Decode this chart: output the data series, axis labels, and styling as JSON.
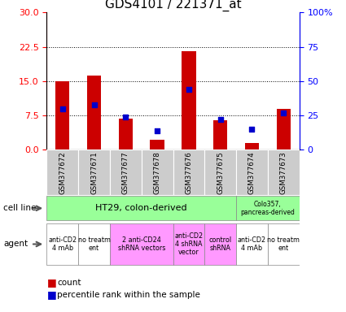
{
  "title": "GDS4101 / 221371_at",
  "samples": [
    "GSM377672",
    "GSM377671",
    "GSM377677",
    "GSM377678",
    "GSM377676",
    "GSM377675",
    "GSM377674",
    "GSM377673"
  ],
  "counts": [
    15.0,
    16.2,
    6.8,
    2.2,
    21.5,
    6.5,
    1.5,
    9.0
  ],
  "percentile_ranks": [
    30.0,
    33.0,
    24.0,
    14.0,
    44.0,
    22.0,
    15.0,
    27.0
  ],
  "ylim_left": [
    0,
    30
  ],
  "ylim_right": [
    0,
    100
  ],
  "yticks_left": [
    0,
    7.5,
    15,
    22.5,
    30
  ],
  "yticks_right": [
    0,
    25,
    50,
    75,
    100
  ],
  "count_color": "#cc0000",
  "percentile_color": "#0000cc",
  "title_fontsize": 11,
  "tick_fontsize": 8,
  "label_fontsize": 8,
  "sample_box_color": "#cccccc",
  "cell_line_color": "#99ff99",
  "agent_pink_color": "#ff99ff",
  "agent_white_color": "#ffffff",
  "agent_spans": [
    {
      "text": "anti-CD2\n4 mAb",
      "start": 0,
      "end": 1,
      "color": "#ffffff"
    },
    {
      "text": "no treatm\nent",
      "start": 1,
      "end": 2,
      "color": "#ffffff"
    },
    {
      "text": "2 anti-CD24\nshRNA vectors",
      "start": 2,
      "end": 4,
      "color": "#ff99ff"
    },
    {
      "text": "anti-CD2\n4 shRNA\nvector",
      "start": 4,
      "end": 5,
      "color": "#ff99ff"
    },
    {
      "text": "control\nshRNA",
      "start": 5,
      "end": 6,
      "color": "#ff99ff"
    },
    {
      "text": "anti-CD2\n4 mAb",
      "start": 6,
      "end": 7,
      "color": "#ffffff"
    },
    {
      "text": "no treatm\nent",
      "start": 7,
      "end": 8,
      "color": "#ffffff"
    }
  ]
}
